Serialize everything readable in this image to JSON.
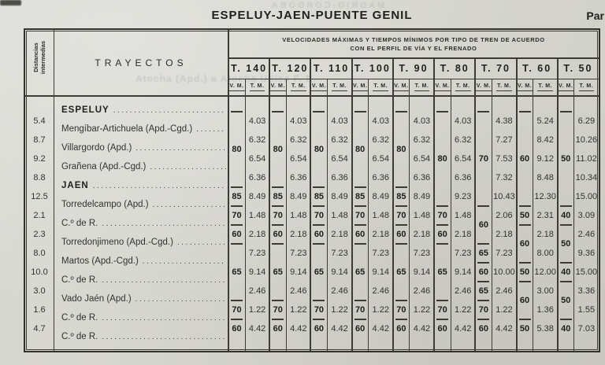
{
  "page": {
    "title": "ESPELUY-JAEN-PUENTE GENIL",
    "corner_fragment": "Par",
    "bleed_caps": "MADRID-CORDOBA",
    "bleed_line": "Atocha (Apd.) a Atocha Unica F. B."
  },
  "table": {
    "corner_header_lines": [
      "Distancias",
      "intermedias"
    ],
    "trayectos_header": "TRAYECTOS",
    "speed_header_line1": "VELOCIDADES MÁXIMAS Y TIEMPOS MÍNIMOS POR TIPO DE TREN DE ACUERDO",
    "speed_header_line2": "CON EL PERFIL DE VÍA Y EL FRENADO",
    "vm_label": "V. M.",
    "tm_label": "T. M.",
    "stations": [
      {
        "name": "ESPELUY",
        "bold": true
      },
      {
        "name": "Mengíbar-Artichuela (Apd.-Cgd.)",
        "bold": false
      },
      {
        "name": "Villargordo (Apd.)",
        "bold": false
      },
      {
        "name": "Grañena (Apd.-Cgd.)",
        "bold": false
      },
      {
        "name": "JAEN",
        "bold": true
      },
      {
        "name": "Torredelcampo (Apd.)",
        "bold": false
      },
      {
        "name": "C.º de R.",
        "bold": false
      },
      {
        "name": "Torredonjimeno (Apd.-Cgd.)",
        "bold": false
      },
      {
        "name": "Martos (Apd.-Cgd.)",
        "bold": false
      },
      {
        "name": "C.º de R.",
        "bold": false
      },
      {
        "name": "Vado Jaén (Apd.)",
        "bold": false
      },
      {
        "name": "C.º de R.",
        "bold": false
      },
      {
        "name": "C.º de R.",
        "bold": false
      }
    ],
    "distances": [
      "5.4",
      "8.7",
      "9.2",
      "8.8",
      "12.5",
      "2.1",
      "2.3",
      "8.0",
      "10.0",
      "3.0",
      "1.6",
      "4.7"
    ],
    "columns": [
      {
        "label": "T. 140",
        "vm_groups": [
          {
            "from": 1,
            "to": 4,
            "v": "80"
          },
          {
            "from": 5,
            "to": 5,
            "v": "85"
          },
          {
            "from": 6,
            "to": 6,
            "v": "70"
          },
          {
            "from": 7,
            "to": 7,
            "v": "60"
          },
          {
            "from": 8,
            "to": 10,
            "v": "65"
          },
          {
            "from": 11,
            "to": 11,
            "v": "70"
          },
          {
            "from": 12,
            "to": 12,
            "v": "60"
          }
        ],
        "tm": [
          "4.03",
          "6.32",
          "6.54",
          "6.36",
          "8.49",
          "1.48",
          "2.18",
          "7.23",
          "9.14",
          "2.46",
          "1.22",
          "4.42"
        ]
      },
      {
        "label": "T. 120",
        "vm_groups": [
          {
            "from": 1,
            "to": 4,
            "v": "80"
          },
          {
            "from": 5,
            "to": 5,
            "v": "85"
          },
          {
            "from": 6,
            "to": 6,
            "v": "70"
          },
          {
            "from": 7,
            "to": 7,
            "v": "60"
          },
          {
            "from": 8,
            "to": 10,
            "v": "65"
          },
          {
            "from": 11,
            "to": 11,
            "v": "70"
          },
          {
            "from": 12,
            "to": 12,
            "v": "60"
          }
        ],
        "tm": [
          "4.03",
          "6.32",
          "6.54",
          "6.36",
          "8.49",
          "1.48",
          "2.18",
          "7.23",
          "9.14",
          "2.46",
          "1.22",
          "4.42"
        ]
      },
      {
        "label": "T. 110",
        "vm_groups": [
          {
            "from": 1,
            "to": 4,
            "v": "80"
          },
          {
            "from": 5,
            "to": 5,
            "v": "85"
          },
          {
            "from": 6,
            "to": 6,
            "v": "70"
          },
          {
            "from": 7,
            "to": 7,
            "v": "60"
          },
          {
            "from": 8,
            "to": 10,
            "v": "65"
          },
          {
            "from": 11,
            "to": 11,
            "v": "70"
          },
          {
            "from": 12,
            "to": 12,
            "v": "60"
          }
        ],
        "tm": [
          "4.03",
          "6.32",
          "6.54",
          "6.36",
          "8.49",
          "1.48",
          "2.18",
          "7.23",
          "9.14",
          "2.46",
          "1.22",
          "4.42"
        ]
      },
      {
        "label": "T. 100",
        "vm_groups": [
          {
            "from": 1,
            "to": 4,
            "v": "80"
          },
          {
            "from": 5,
            "to": 5,
            "v": "85"
          },
          {
            "from": 6,
            "to": 6,
            "v": "70"
          },
          {
            "from": 7,
            "to": 7,
            "v": "60"
          },
          {
            "from": 8,
            "to": 10,
            "v": "65"
          },
          {
            "from": 11,
            "to": 11,
            "v": "70"
          },
          {
            "from": 12,
            "to": 12,
            "v": "60"
          }
        ],
        "tm": [
          "4.03",
          "6.32",
          "6.54",
          "6.36",
          "8.49",
          "1.48",
          "2.18",
          "7.23",
          "9.14",
          "2.46",
          "1.22",
          "4.42"
        ]
      },
      {
        "label": "T. 90",
        "vm_groups": [
          {
            "from": 1,
            "to": 4,
            "v": "80"
          },
          {
            "from": 5,
            "to": 5,
            "v": "85"
          },
          {
            "from": 6,
            "to": 6,
            "v": "70"
          },
          {
            "from": 7,
            "to": 7,
            "v": "60"
          },
          {
            "from": 8,
            "to": 10,
            "v": "65"
          },
          {
            "from": 11,
            "to": 11,
            "v": "70"
          },
          {
            "from": 12,
            "to": 12,
            "v": "60"
          }
        ],
        "tm": [
          "4.03",
          "6.32",
          "6.54",
          "6.36",
          "8.49",
          "1.48",
          "2.18",
          "7.23",
          "9.14",
          "2.46",
          "1.22",
          "4.42"
        ]
      },
      {
        "label": "T. 80",
        "vm_groups": [
          {
            "from": 1,
            "to": 5,
            "v": "80"
          },
          {
            "from": 6,
            "to": 6,
            "v": "70"
          },
          {
            "from": 7,
            "to": 7,
            "v": "60"
          },
          {
            "from": 8,
            "to": 10,
            "v": "65"
          },
          {
            "from": 11,
            "to": 11,
            "v": "70"
          },
          {
            "from": 12,
            "to": 12,
            "v": "60"
          }
        ],
        "tm": [
          "4.03",
          "6.32",
          "6.54",
          "6.36",
          "9.23",
          "1.48",
          "2.18",
          "7.23",
          "9.14",
          "2.46",
          "1.22",
          "4.42"
        ]
      },
      {
        "label": "T. 70",
        "vm_groups": [
          {
            "from": 1,
            "to": 5,
            "v": "70"
          },
          {
            "from": 6,
            "to": 7,
            "v": "60"
          },
          {
            "from": 8,
            "to": 8,
            "v": "65"
          },
          {
            "from": 9,
            "to": 9,
            "v": "60"
          },
          {
            "from": 10,
            "to": 10,
            "v": "65"
          },
          {
            "from": 11,
            "to": 11,
            "v": "70"
          },
          {
            "from": 12,
            "to": 12,
            "v": "60"
          }
        ],
        "tm": [
          "4.38",
          "7.27",
          "7.53",
          "7.32",
          "10.43",
          "2.06",
          "2.18",
          "7.23",
          "10.00",
          "2.46",
          "1.22",
          "4.42"
        ]
      },
      {
        "label": "T. 60",
        "vm_groups": [
          {
            "from": 1,
            "to": 5,
            "v": "60"
          },
          {
            "from": 6,
            "to": 6,
            "v": "50"
          },
          {
            "from": 7,
            "to": 8,
            "v": "60"
          },
          {
            "from": 9,
            "to": 9,
            "v": "50"
          },
          {
            "from": 10,
            "to": 11,
            "v": "60"
          },
          {
            "from": 12,
            "to": 12,
            "v": "50"
          }
        ],
        "tm": [
          "5.24",
          "8.42",
          "9.12",
          "8.48",
          "12.30",
          "2.31",
          "2.18",
          "8.00",
          "12.00",
          "3.00",
          "1.36",
          "5.38"
        ]
      },
      {
        "label": "T. 50",
        "vm_groups": [
          {
            "from": 1,
            "to": 5,
            "v": "50"
          },
          {
            "from": 6,
            "to": 6,
            "v": "40"
          },
          {
            "from": 7,
            "to": 8,
            "v": "50"
          },
          {
            "from": 9,
            "to": 9,
            "v": "40"
          },
          {
            "from": 10,
            "to": 11,
            "v": "50"
          },
          {
            "from": 12,
            "to": 12,
            "v": "40"
          }
        ],
        "tm": [
          "6.29",
          "10.26",
          "11.02",
          "10.34",
          "15.00",
          "3.09",
          "2.46",
          "9.36",
          "15.00",
          "3.36",
          "1.55",
          "7.03"
        ]
      }
    ]
  }
}
